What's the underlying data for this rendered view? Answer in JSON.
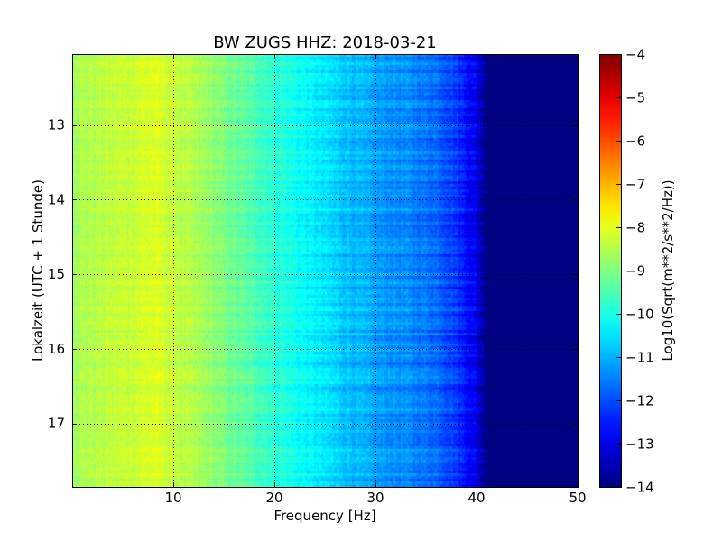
{
  "chart_data": {
    "type": "heatmap",
    "title": "BW ZUGS HHZ: 2018-03-21",
    "xlabel": "Frequency [Hz]",
    "ylabel": "Lokalzeit (UTC + 1 Stunde)",
    "xlim": [
      0,
      50
    ],
    "ylim": [
      17.85,
      12.05
    ],
    "xticks": [
      10,
      20,
      30,
      40,
      50
    ],
    "yticks": [
      13,
      14,
      15,
      16,
      17
    ],
    "grid": true,
    "colormap": "jet",
    "colorbar": {
      "label": "Log10(Sqrt(m**2/s**2/Hz))",
      "range": [
        -14,
        -4
      ],
      "ticks": [
        -4,
        -5,
        -6,
        -7,
        -8,
        -9,
        -10,
        -11,
        -12,
        -13,
        -14
      ]
    },
    "spectral_profile": {
      "frequency_hz": [
        0,
        5,
        8,
        10,
        13,
        16,
        20,
        24,
        27,
        30,
        33,
        36,
        38,
        40,
        41,
        50
      ],
      "log10_amplitude": [
        -8.6,
        -8.3,
        -8.1,
        -8.3,
        -8.7,
        -9.2,
        -9.8,
        -10.4,
        -10.8,
        -11.2,
        -11.4,
        -11.7,
        -12.2,
        -13.0,
        -14.0,
        -14.0
      ]
    }
  }
}
